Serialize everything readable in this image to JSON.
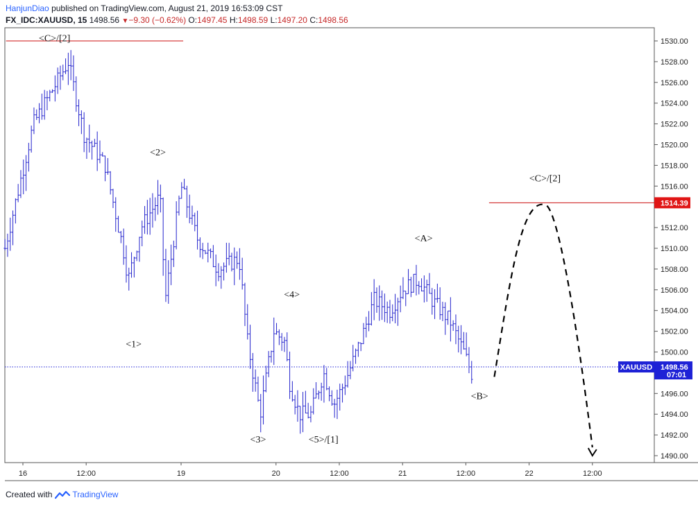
{
  "header": {
    "author": "HanjunDiao",
    "published_text": "published on TradingView.com, August 21, 2019 16:53:09 CST",
    "symbol": "FX_IDC:XAUUSD, 15",
    "last": "1498.56",
    "change": "−9.30 (−0.62%)",
    "open_label": "O:",
    "open": "1497.45",
    "high_label": "H:",
    "high": "1498.59",
    "low_label": "L:",
    "low": "1497.20",
    "close_label": "C:",
    "close": "1498.56"
  },
  "footer": {
    "created_with": "Created with",
    "brand": "TradingView"
  },
  "colors": {
    "bars": "#2222cc",
    "resistance": "#cc1111",
    "price_tag": "#1e22d6",
    "level_tag": "#e01515"
  },
  "chart_data": {
    "type": "bar",
    "title": "",
    "ylim": [
      1489,
      1531
    ],
    "y_ticks": [
      1490,
      1492,
      1494,
      1496,
      1498,
      1500,
      1502,
      1504,
      1506,
      1508,
      1510,
      1512,
      1514,
      1516,
      1518,
      1520,
      1522,
      1524,
      1526,
      1528,
      1530
    ],
    "y_tick_labels": [
      "1490.00",
      "1492.00",
      "1494.00",
      "1496.00",
      "1498.00",
      "1500.00",
      "1502.00",
      "1504.00",
      "1506.00",
      "1508.00",
      "1510.00",
      "1512.00",
      "1516.00",
      "1518.00",
      "1520.00",
      "1522.00",
      "1524.00",
      "1526.00",
      "1528.00",
      "1530.00"
    ],
    "x_ticks": [
      {
        "label": "16",
        "t": 0
      },
      {
        "label": "12:00",
        "t": 6
      },
      {
        "label": "19",
        "t": 15
      },
      {
        "label": "20",
        "t": 24
      },
      {
        "label": "12:00",
        "t": 30
      },
      {
        "label": "21",
        "t": 36
      },
      {
        "label": "12:00",
        "t": 42
      },
      {
        "label": "22",
        "t": 48
      },
      {
        "label": "12:00",
        "t": 54
      }
    ],
    "x_unit": "hours from 16 Aug 00:00 (trading time)",
    "anchors": [
      {
        "t": -1.7,
        "p": 1510
      },
      {
        "t": 1.0,
        "p": 1522
      },
      {
        "t": 2.1,
        "p": 1524
      },
      {
        "t": 4.3,
        "p": 1528
      },
      {
        "t": 5.8,
        "p": 1521
      },
      {
        "t": 7.8,
        "p": 1518
      },
      {
        "t": 9.5,
        "p": 1510
      },
      {
        "t": 10.0,
        "p": 1507
      },
      {
        "t": 11.2,
        "p": 1512
      },
      {
        "t": 13.0,
        "p": 1515
      },
      {
        "t": 13.5,
        "p": 1505
      },
      {
        "t": 15.0,
        "p": 1516
      },
      {
        "t": 16.5,
        "p": 1511
      },
      {
        "t": 18.5,
        "p": 1508
      },
      {
        "t": 20.5,
        "p": 1509
      },
      {
        "t": 21.3,
        "p": 1501
      },
      {
        "t": 22.5,
        "p": 1494
      },
      {
        "t": 23.8,
        "p": 1502
      },
      {
        "t": 24.8,
        "p": 1501
      },
      {
        "t": 25.3,
        "p": 1497
      },
      {
        "t": 26.2,
        "p": 1494
      },
      {
        "t": 27.3,
        "p": 1494
      },
      {
        "t": 28.5,
        "p": 1498
      },
      {
        "t": 29.5,
        "p": 1495
      },
      {
        "t": 30.5,
        "p": 1497
      },
      {
        "t": 32.0,
        "p": 1501
      },
      {
        "t": 33.3,
        "p": 1505
      },
      {
        "t": 34.8,
        "p": 1504
      },
      {
        "t": 36.0,
        "p": 1506
      },
      {
        "t": 37.5,
        "p": 1507
      },
      {
        "t": 38.8,
        "p": 1505
      },
      {
        "t": 40.5,
        "p": 1503
      },
      {
        "t": 41.8,
        "p": 1500
      },
      {
        "t": 42.7,
        "p": 1497.5
      }
    ],
    "last_price": 1498.56,
    "price_tag": {
      "symbol": "XAUUSD",
      "price": "1498.56",
      "countdown": "07:01"
    },
    "resistance_levels": [
      {
        "price": 1530.0,
        "t_start": -1.6,
        "t_end": 15.2
      },
      {
        "price": 1514.39,
        "t_start": 44.2,
        "t_end": 62.5
      }
    ],
    "level_tag": "1514.39",
    "projection": [
      {
        "t": 44.7,
        "p": 1497.6
      },
      {
        "t": 49.5,
        "p": 1514.2
      },
      {
        "t": 50.3,
        "p": 1512.5
      },
      {
        "t": 54.0,
        "p": 1490
      }
    ],
    "wave_labels": [
      {
        "text": "<C>/[2]",
        "t": 3.0,
        "p": 1530.3
      },
      {
        "text": "<2>",
        "t": 12.8,
        "p": 1519.3
      },
      {
        "text": "<1>",
        "t": 10.5,
        "p": 1500.8
      },
      {
        "text": "<4>",
        "t": 25.5,
        "p": 1505.6
      },
      {
        "text": "<3>",
        "t": 22.3,
        "p": 1491.6
      },
      {
        "text": "<5>/[1]",
        "t": 28.5,
        "p": 1491.6
      },
      {
        "text": "<A>",
        "t": 38.0,
        "p": 1511.0
      },
      {
        "text": "<B>",
        "t": 43.3,
        "p": 1495.8
      },
      {
        "text": "<C>/[2]",
        "t": 49.5,
        "p": 1516.8
      }
    ]
  }
}
